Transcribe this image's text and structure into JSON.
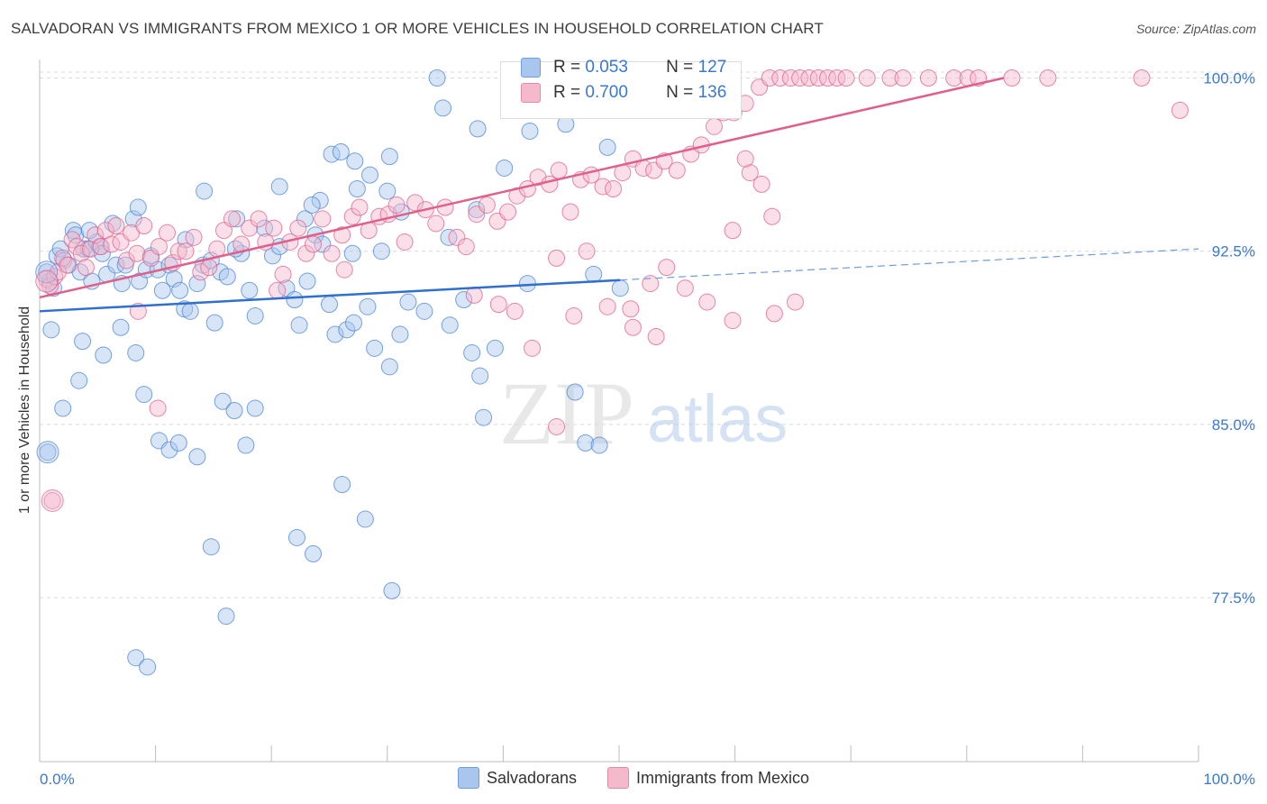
{
  "title": "SALVADORAN VS IMMIGRANTS FROM MEXICO 1 OR MORE VEHICLES IN HOUSEHOLD CORRELATION CHART",
  "source": "Source: ZipAtlas.com",
  "watermark": {
    "zip": "ZIP",
    "atlas": "atlas"
  },
  "stats": [
    {
      "r_label": "R =",
      "r_value": "0.053",
      "n_label": "N =",
      "n_value": "127",
      "color": "#a9c6ee"
    },
    {
      "r_label": "R =",
      "r_value": "0.700",
      "n_label": "N =",
      "n_value": "136",
      "color": "#f5b9cc"
    }
  ],
  "legend": [
    {
      "label": "Salvadorans",
      "color": "#a9c6ee"
    },
    {
      "label": "Immigrants from Mexico",
      "color": "#f5b9cc"
    }
  ],
  "chart_data": {
    "type": "scatter",
    "title": "SALVADORAN VS IMMIGRANTS FROM MEXICO 1 OR MORE VEHICLES IN HOUSEHOLD CORRELATION CHART",
    "xlabel": "",
    "ylabel": "1 or more Vehicles in Household",
    "xlim": [
      0,
      100
    ],
    "ylim": [
      70.4,
      100.8
    ],
    "x_tick_labels": [
      "0.0%",
      "100.0%"
    ],
    "y_ticks": [
      77.5,
      85.0,
      92.5,
      100.0
    ],
    "y_tick_labels": [
      "77.5%",
      "85.0%",
      "92.5%",
      "100.0%"
    ],
    "grid": true,
    "legend_position": "bottom",
    "series": [
      {
        "name": "Salvadorans",
        "color": "#4a86d6",
        "fill": "#a9c6ee",
        "trend": {
          "x": [
            0,
            50.1
          ],
          "y": [
            89.9,
            91.25
          ],
          "dashed_to": [
            100,
            92.6
          ]
        },
        "points": [
          [
            0.6,
            91.6
          ],
          [
            0.9,
            91.2
          ],
          [
            1.2,
            90.9
          ],
          [
            1.5,
            92.3
          ],
          [
            1.8,
            92.6
          ],
          [
            2.1,
            92.1
          ],
          [
            2.5,
            91.9
          ],
          [
            2.9,
            93.4
          ],
          [
            3.1,
            93.2
          ],
          [
            3.5,
            91.6
          ],
          [
            3.8,
            92.6
          ],
          [
            4.2,
            92.6
          ],
          [
            4.5,
            91.2
          ],
          [
            4.9,
            92.9
          ],
          [
            5.2,
            92.7
          ],
          [
            5.4,
            92.4
          ],
          [
            5.8,
            91.5
          ],
          [
            6.3,
            93.7
          ],
          [
            6.6,
            91.9
          ],
          [
            7.1,
            91.1
          ],
          [
            7.4,
            91.9
          ],
          [
            8.1,
            93.9
          ],
          [
            8.6,
            91.2
          ],
          [
            9.2,
            91.7
          ],
          [
            9.6,
            92.3
          ],
          [
            10.2,
            91.7
          ],
          [
            10.6,
            90.8
          ],
          [
            11.2,
            91.9
          ],
          [
            11.6,
            91.3
          ],
          [
            12.1,
            90.8
          ],
          [
            12.5,
            90.0
          ],
          [
            13.0,
            89.9
          ],
          [
            13.6,
            91.1
          ],
          [
            14.1,
            91.9
          ],
          [
            14.8,
            92.1
          ],
          [
            15.1,
            89.4
          ],
          [
            15.6,
            91.6
          ],
          [
            16.2,
            91.4
          ],
          [
            17.0,
            93.9
          ],
          [
            17.4,
            92.4
          ],
          [
            18.1,
            90.8
          ],
          [
            18.6,
            89.7
          ],
          [
            19.4,
            93.5
          ],
          [
            20.1,
            92.3
          ],
          [
            20.7,
            92.7
          ],
          [
            21.3,
            90.9
          ],
          [
            22.4,
            89.3
          ],
          [
            22.9,
            93.9
          ],
          [
            23.8,
            93.2
          ],
          [
            24.4,
            92.8
          ],
          [
            25.5,
            88.9
          ],
          [
            26.5,
            89.1
          ],
          [
            27.1,
            89.4
          ],
          [
            28.3,
            90.1
          ],
          [
            28.9,
            88.3
          ],
          [
            30.2,
            87.5
          ],
          [
            31.1,
            88.9
          ],
          [
            31.8,
            90.3
          ],
          [
            33.2,
            89.9
          ],
          [
            35.4,
            89.3
          ],
          [
            36.6,
            90.4
          ],
          [
            37.3,
            88.1
          ],
          [
            38.0,
            87.1
          ],
          [
            39.3,
            88.3
          ],
          [
            42.1,
            91.1
          ],
          [
            46.2,
            86.4
          ],
          [
            47.8,
            91.5
          ],
          [
            50.1,
            90.9
          ],
          [
            24.2,
            94.7
          ],
          [
            23.1,
            91.2
          ],
          [
            25.2,
            96.7
          ],
          [
            26.0,
            96.8
          ],
          [
            27.2,
            96.4
          ],
          [
            27.4,
            95.2
          ],
          [
            28.5,
            95.8
          ],
          [
            30.0,
            95.1
          ],
          [
            30.2,
            96.6
          ],
          [
            31.2,
            94.2
          ],
          [
            35.3,
            93.1
          ],
          [
            37.7,
            94.3
          ],
          [
            37.8,
            97.8
          ],
          [
            40.1,
            96.1
          ],
          [
            42.3,
            97.7
          ],
          [
            45.4,
            98.0
          ],
          [
            49.0,
            97.0
          ],
          [
            34.3,
            100.0
          ],
          [
            34.8,
            98.7
          ],
          [
            23.5,
            94.5
          ],
          [
            29.5,
            92.5
          ],
          [
            14.2,
            95.1
          ],
          [
            20.7,
            95.3
          ],
          [
            8.5,
            94.4
          ],
          [
            4.3,
            93.4
          ],
          [
            1.0,
            89.1
          ],
          [
            3.7,
            88.6
          ],
          [
            3.4,
            86.9
          ],
          [
            5.5,
            88.0
          ],
          [
            7.0,
            89.2
          ],
          [
            8.3,
            88.1
          ],
          [
            9.0,
            86.3
          ],
          [
            10.3,
            84.3
          ],
          [
            11.2,
            83.9
          ],
          [
            12.0,
            84.2
          ],
          [
            13.6,
            83.6
          ],
          [
            15.8,
            86.0
          ],
          [
            16.8,
            85.6
          ],
          [
            17.8,
            84.1
          ],
          [
            18.6,
            85.7
          ],
          [
            14.8,
            79.7
          ],
          [
            16.1,
            76.7
          ],
          [
            8.3,
            74.9
          ],
          [
            9.3,
            74.5
          ],
          [
            22.2,
            80.1
          ],
          [
            23.6,
            79.4
          ],
          [
            26.1,
            82.4
          ],
          [
            28.1,
            80.9
          ],
          [
            30.4,
            77.8
          ],
          [
            0.7,
            83.8
          ],
          [
            2.0,
            85.7
          ],
          [
            38.3,
            85.3
          ],
          [
            47.1,
            84.2
          ],
          [
            48.3,
            84.1
          ],
          [
            25.0,
            90.2
          ],
          [
            27.0,
            92.4
          ],
          [
            22.0,
            90.4
          ],
          [
            16.9,
            92.6
          ],
          [
            12.6,
            93.0
          ]
        ]
      },
      {
        "name": "Immigrants from Mexico",
        "color": "#e0608a",
        "fill": "#f5b9cc",
        "trend": {
          "x": [
            0,
            83.2
          ],
          "y": [
            90.5,
            100.0
          ]
        },
        "points": [
          [
            0.6,
            91.3
          ],
          [
            0.9,
            91.0
          ],
          [
            1.3,
            91.4
          ],
          [
            1.6,
            91.6
          ],
          [
            2.0,
            92.2
          ],
          [
            2.4,
            91.9
          ],
          [
            2.8,
            93.0
          ],
          [
            3.2,
            92.7
          ],
          [
            3.6,
            92.4
          ],
          [
            4.0,
            91.8
          ],
          [
            4.4,
            92.6
          ],
          [
            4.8,
            93.2
          ],
          [
            5.3,
            92.7
          ],
          [
            5.7,
            93.4
          ],
          [
            6.2,
            92.8
          ],
          [
            6.6,
            93.6
          ],
          [
            7.0,
            92.9
          ],
          [
            7.5,
            92.1
          ],
          [
            7.9,
            93.3
          ],
          [
            8.4,
            92.4
          ],
          [
            9.0,
            93.6
          ],
          [
            9.6,
            92.2
          ],
          [
            10.3,
            92.7
          ],
          [
            11.0,
            93.3
          ],
          [
            11.5,
            92.0
          ],
          [
            12.0,
            92.5
          ],
          [
            12.6,
            92.5
          ],
          [
            13.3,
            93.1
          ],
          [
            13.9,
            91.6
          ],
          [
            14.6,
            91.8
          ],
          [
            15.3,
            92.6
          ],
          [
            15.9,
            93.4
          ],
          [
            16.6,
            93.9
          ],
          [
            17.4,
            92.8
          ],
          [
            18.1,
            93.5
          ],
          [
            18.9,
            93.9
          ],
          [
            19.5,
            92.9
          ],
          [
            20.2,
            93.5
          ],
          [
            21.0,
            91.5
          ],
          [
            21.6,
            92.9
          ],
          [
            22.3,
            93.5
          ],
          [
            23.0,
            92.4
          ],
          [
            23.6,
            92.8
          ],
          [
            24.4,
            93.9
          ],
          [
            25.2,
            92.4
          ],
          [
            26.1,
            93.2
          ],
          [
            27.0,
            94.0
          ],
          [
            27.6,
            94.4
          ],
          [
            28.4,
            93.4
          ],
          [
            29.3,
            94.0
          ],
          [
            30.1,
            94.1
          ],
          [
            30.8,
            94.5
          ],
          [
            31.5,
            92.9
          ],
          [
            32.4,
            94.6
          ],
          [
            33.3,
            94.3
          ],
          [
            34.2,
            93.7
          ],
          [
            35.0,
            94.4
          ],
          [
            36.0,
            93.1
          ],
          [
            36.8,
            92.7
          ],
          [
            37.7,
            94.1
          ],
          [
            38.6,
            94.5
          ],
          [
            39.5,
            93.8
          ],
          [
            40.4,
            94.2
          ],
          [
            41.2,
            94.9
          ],
          [
            42.1,
            95.2
          ],
          [
            43.0,
            95.7
          ],
          [
            44.0,
            95.4
          ],
          [
            44.8,
            96.0
          ],
          [
            45.8,
            94.2
          ],
          [
            46.7,
            95.6
          ],
          [
            47.6,
            95.8
          ],
          [
            48.6,
            95.3
          ],
          [
            49.5,
            95.2
          ],
          [
            50.3,
            95.9
          ],
          [
            51.2,
            96.5
          ],
          [
            52.1,
            96.1
          ],
          [
            53.0,
            96.0
          ],
          [
            53.9,
            96.4
          ],
          [
            55.0,
            96.0
          ],
          [
            56.2,
            96.7
          ],
          [
            57.1,
            97.1
          ],
          [
            58.2,
            97.9
          ],
          [
            59.0,
            98.5
          ],
          [
            59.9,
            98.5
          ],
          [
            60.9,
            98.9
          ],
          [
            62.1,
            99.6
          ],
          [
            63.0,
            100.0
          ],
          [
            63.9,
            100.0
          ],
          [
            64.8,
            100.0
          ],
          [
            65.6,
            100.0
          ],
          [
            66.4,
            100.0
          ],
          [
            67.2,
            100.0
          ],
          [
            68.0,
            100.0
          ],
          [
            68.8,
            100.0
          ],
          [
            69.6,
            100.0
          ],
          [
            71.4,
            100.0
          ],
          [
            73.4,
            100.0
          ],
          [
            74.5,
            100.0
          ],
          [
            76.7,
            100.0
          ],
          [
            78.9,
            100.0
          ],
          [
            80.1,
            100.0
          ],
          [
            81.0,
            100.0
          ],
          [
            83.9,
            100.0
          ],
          [
            87.0,
            100.0
          ],
          [
            95.1,
            100.0
          ],
          [
            98.4,
            98.6
          ],
          [
            59.1,
            99.8
          ],
          [
            59.8,
            93.4
          ],
          [
            61.3,
            95.9
          ],
          [
            63.2,
            94.0
          ],
          [
            60.9,
            96.5
          ],
          [
            62.3,
            95.4
          ],
          [
            44.6,
            92.2
          ],
          [
            47.2,
            92.5
          ],
          [
            51.0,
            90.0
          ],
          [
            52.7,
            91.1
          ],
          [
            54.1,
            91.8
          ],
          [
            55.7,
            90.9
          ],
          [
            57.6,
            90.3
          ],
          [
            59.8,
            89.5
          ],
          [
            63.4,
            89.8
          ],
          [
            65.2,
            90.3
          ],
          [
            37.5,
            90.6
          ],
          [
            39.6,
            90.2
          ],
          [
            41.0,
            89.9
          ],
          [
            42.5,
            88.3
          ],
          [
            46.1,
            89.7
          ],
          [
            49.0,
            90.1
          ],
          [
            51.2,
            89.2
          ],
          [
            53.2,
            88.8
          ],
          [
            44.6,
            84.9
          ],
          [
            1.1,
            81.7
          ],
          [
            8.5,
            89.9
          ],
          [
            10.2,
            85.7
          ],
          [
            20.5,
            90.8
          ],
          [
            26.3,
            91.7
          ]
        ]
      }
    ]
  }
}
